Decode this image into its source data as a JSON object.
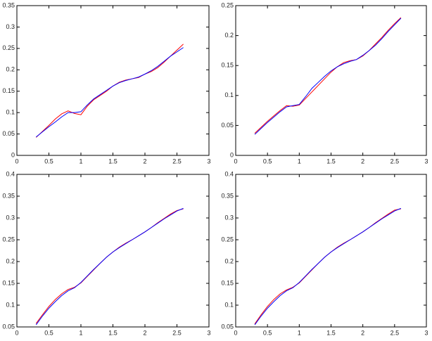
{
  "chart_data": [
    {
      "type": "line",
      "x": [
        0.3,
        0.4,
        0.5,
        0.6,
        0.7,
        0.8,
        0.9,
        1.0,
        1.1,
        1.2,
        1.3,
        1.4,
        1.5,
        1.6,
        1.7,
        1.8,
        1.9,
        2.0,
        2.1,
        2.2,
        2.3,
        2.4,
        2.5,
        2.6
      ],
      "series": [
        {
          "color": "#ff0000",
          "values": [
            0.042,
            0.056,
            0.07,
            0.085,
            0.097,
            0.104,
            0.098,
            0.095,
            0.115,
            0.13,
            0.14,
            0.15,
            0.162,
            0.171,
            0.176,
            0.179,
            0.182,
            0.19,
            0.196,
            0.205,
            0.218,
            0.232,
            0.246,
            0.26
          ]
        },
        {
          "color": "#0000ff",
          "values": [
            0.043,
            0.055,
            0.067,
            0.078,
            0.09,
            0.1,
            0.1,
            0.102,
            0.118,
            0.132,
            0.142,
            0.152,
            0.162,
            0.17,
            0.175,
            0.179,
            0.183,
            0.19,
            0.198,
            0.208,
            0.22,
            0.232,
            0.242,
            0.252
          ]
        }
      ],
      "xlim": [
        0,
        3
      ],
      "ylim": [
        0,
        0.35
      ],
      "xticks": [
        0,
        0.5,
        1,
        1.5,
        2,
        2.5,
        3
      ],
      "yticks": [
        0,
        0.05,
        0.1,
        0.15,
        0.2,
        0.25,
        0.3,
        0.35
      ]
    },
    {
      "type": "line",
      "x": [
        0.3,
        0.4,
        0.5,
        0.6,
        0.7,
        0.8,
        0.9,
        1.0,
        1.1,
        1.2,
        1.3,
        1.4,
        1.5,
        1.6,
        1.7,
        1.8,
        1.9,
        2.0,
        2.1,
        2.2,
        2.3,
        2.4,
        2.5,
        2.6
      ],
      "series": [
        {
          "color": "#ff0000",
          "values": [
            0.037,
            0.047,
            0.057,
            0.066,
            0.075,
            0.083,
            0.082,
            0.084,
            0.095,
            0.106,
            0.117,
            0.128,
            0.139,
            0.148,
            0.155,
            0.158,
            0.16,
            0.166,
            0.175,
            0.186,
            0.197,
            0.209,
            0.22,
            0.23
          ]
        },
        {
          "color": "#0000ff",
          "values": [
            0.035,
            0.045,
            0.055,
            0.064,
            0.073,
            0.081,
            0.083,
            0.085,
            0.098,
            0.112,
            0.122,
            0.132,
            0.141,
            0.148,
            0.153,
            0.157,
            0.16,
            0.167,
            0.175,
            0.184,
            0.195,
            0.207,
            0.218,
            0.229
          ]
        }
      ],
      "xlim": [
        0,
        3
      ],
      "ylim": [
        0,
        0.25
      ],
      "xticks": [
        0,
        0.5,
        1,
        1.5,
        2,
        2.5,
        3
      ],
      "yticks": [
        0,
        0.05,
        0.1,
        0.15,
        0.2,
        0.25
      ]
    },
    {
      "type": "line",
      "x": [
        0.3,
        0.4,
        0.5,
        0.6,
        0.7,
        0.8,
        0.9,
        1.0,
        1.1,
        1.2,
        1.3,
        1.4,
        1.5,
        1.6,
        1.7,
        1.8,
        1.9,
        2.0,
        2.1,
        2.2,
        2.3,
        2.4,
        2.5,
        2.6
      ],
      "series": [
        {
          "color": "#ff0000",
          "values": [
            0.058,
            0.078,
            0.097,
            0.113,
            0.126,
            0.136,
            0.141,
            0.151,
            0.166,
            0.181,
            0.196,
            0.21,
            0.222,
            0.233,
            0.242,
            0.25,
            0.259,
            0.268,
            0.278,
            0.289,
            0.299,
            0.309,
            0.317,
            0.321
          ]
        },
        {
          "color": "#0000ff",
          "values": [
            0.055,
            0.075,
            0.093,
            0.108,
            0.122,
            0.133,
            0.14,
            0.152,
            0.167,
            0.182,
            0.196,
            0.21,
            0.222,
            0.232,
            0.241,
            0.25,
            0.259,
            0.268,
            0.278,
            0.288,
            0.298,
            0.307,
            0.316,
            0.322
          ]
        }
      ],
      "xlim": [
        0,
        3
      ],
      "ylim": [
        0.05,
        0.4
      ],
      "xticks": [
        0,
        0.5,
        1,
        1.5,
        2,
        2.5,
        3
      ],
      "yticks": [
        0.05,
        0.1,
        0.15,
        0.2,
        0.25,
        0.3,
        0.35,
        0.4
      ]
    },
    {
      "type": "line",
      "x": [
        0.3,
        0.4,
        0.5,
        0.6,
        0.7,
        0.8,
        0.9,
        1.0,
        1.1,
        1.2,
        1.3,
        1.4,
        1.5,
        1.6,
        1.7,
        1.8,
        1.9,
        2.0,
        2.1,
        2.2,
        2.3,
        2.4,
        2.5,
        2.6
      ],
      "series": [
        {
          "color": "#ff0000",
          "values": [
            0.057,
            0.078,
            0.097,
            0.113,
            0.126,
            0.135,
            0.141,
            0.151,
            0.166,
            0.181,
            0.196,
            0.21,
            0.222,
            0.233,
            0.242,
            0.25,
            0.259,
            0.268,
            0.278,
            0.289,
            0.299,
            0.309,
            0.318,
            0.321
          ]
        },
        {
          "color": "#0000ff",
          "values": [
            0.055,
            0.075,
            0.093,
            0.108,
            0.122,
            0.133,
            0.14,
            0.152,
            0.167,
            0.182,
            0.196,
            0.21,
            0.222,
            0.232,
            0.241,
            0.25,
            0.259,
            0.268,
            0.278,
            0.288,
            0.298,
            0.307,
            0.316,
            0.322
          ]
        }
      ],
      "xlim": [
        0,
        3
      ],
      "ylim": [
        0.05,
        0.4
      ],
      "xticks": [
        0,
        0.5,
        1,
        1.5,
        2,
        2.5,
        3
      ],
      "yticks": [
        0.05,
        0.1,
        0.15,
        0.2,
        0.25,
        0.3,
        0.35,
        0.4
      ]
    }
  ]
}
